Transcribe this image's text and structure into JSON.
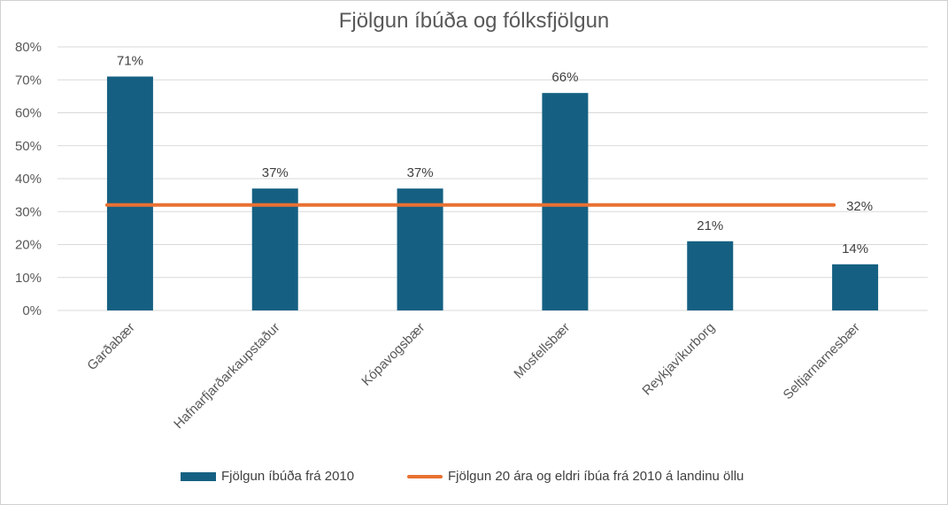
{
  "chart_data": {
    "type": "bar",
    "title": "Fjölgun íbúða og fólksfjölgun",
    "categories": [
      "Garðabær",
      "Hafnarfjarðarkaupstaður",
      "Kópavogsbær",
      "Mosfellsbær",
      "Reykjavíkurborg",
      "Seltjarnarnesbær"
    ],
    "series": [
      {
        "name": "Fjölgun íbúða frá 2010",
        "type": "bar",
        "values": [
          0.71,
          0.37,
          0.37,
          0.66,
          0.21,
          0.14
        ],
        "labels": [
          "71%",
          "37%",
          "37%",
          "66%",
          "21%",
          "14%"
        ]
      },
      {
        "name": "Fjölgun 20 ára og eldri íbúa frá 2010 á landinu öllu",
        "type": "line",
        "values": [
          0.32,
          0.32,
          0.32,
          0.32,
          0.32,
          0.32
        ],
        "end_label": "32%"
      }
    ],
    "ylim": [
      0,
      0.8
    ],
    "yticks": [
      "0%",
      "10%",
      "20%",
      "30%",
      "40%",
      "50%",
      "60%",
      "70%",
      "80%"
    ],
    "grid": true,
    "legend_position": "bottom",
    "colors": {
      "bar": "#156082",
      "line": "#E97132",
      "grid": "#D9D9D9",
      "text": "#595959"
    }
  }
}
